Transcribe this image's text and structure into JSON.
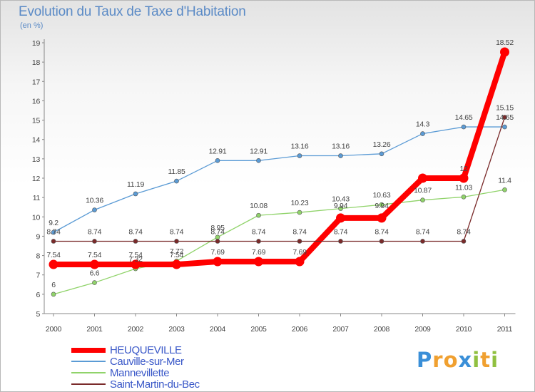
{
  "chart_data": {
    "type": "line",
    "title": "Evolution du Taux de Taxe d'Habitation",
    "subtitle": "(en %)",
    "x": [
      "2000",
      "2001",
      "2002",
      "2003",
      "2004",
      "2005",
      "2006",
      "2007",
      "2008",
      "2009",
      "2010",
      "2011"
    ],
    "ylim": [
      5,
      19
    ],
    "yticks": [
      5,
      6,
      7,
      8,
      9,
      10,
      11,
      12,
      13,
      14,
      15,
      16,
      17,
      18,
      19
    ],
    "grid": false,
    "legend_placement": "bottom-left",
    "series": [
      {
        "name": "HEUQUEVILLE",
        "color": "#ff0000",
        "values": [
          7.54,
          7.54,
          7.54,
          7.54,
          7.69,
          7.69,
          7.69,
          9.94,
          9.94,
          12,
          12,
          18.52
        ],
        "labels": [
          "7.54",
          "7.54",
          "7.54",
          "7.54",
          "7.69",
          "7.69",
          "7.69",
          "",
          "",
          "",
          "12",
          "18.52"
        ]
      },
      {
        "name": "Cauville-sur-Mer",
        "color": "#5b9bd5",
        "values": [
          9.2,
          10.36,
          11.19,
          11.85,
          12.91,
          12.91,
          13.16,
          13.16,
          13.26,
          14.3,
          14.65,
          14.65
        ],
        "labels": [
          "9.2",
          "10.36",
          "11.19",
          "11.85",
          "12.91",
          "12.91",
          "13.16",
          "13.16",
          "13.26",
          "14.3",
          "14.65",
          "14.65"
        ]
      },
      {
        "name": "Mannevillette",
        "color": "#90d36a",
        "values": [
          6,
          6.6,
          7.32,
          7.72,
          8.95,
          10.08,
          10.23,
          10.43,
          10.63,
          10.87,
          11.03,
          11.4
        ],
        "labels": [
          "6",
          "6.6",
          "7.32",
          "7.72",
          "8.95",
          "10.08",
          "10.23",
          "10.43",
          "10.63",
          "10.87",
          "11.03",
          "11.4"
        ]
      },
      {
        "name": "Saint-Martin-du-Bec",
        "color": "#7a2a2a",
        "values": [
          8.74,
          8.74,
          8.74,
          8.74,
          8.74,
          8.74,
          8.74,
          8.74,
          8.74,
          8.74,
          8.74,
          15.15
        ],
        "labels": [
          "8.74",
          "8.74",
          "8.74",
          "8.74",
          "8.74",
          "8.74",
          "8.74",
          "8.74",
          "8.74",
          "8.74",
          "8.74",
          "15.15"
        ]
      }
    ],
    "extra_labels": [
      "9.94",
      "9.94"
    ]
  },
  "logo": {
    "letters": [
      "P",
      "r",
      "o",
      "x",
      "i",
      "t",
      "i"
    ],
    "colors": [
      "#3a8fd8",
      "#f0a030",
      "#f0a030",
      "#3a8fd8",
      "#90c040",
      "#f0a030",
      "#90c040"
    ]
  }
}
